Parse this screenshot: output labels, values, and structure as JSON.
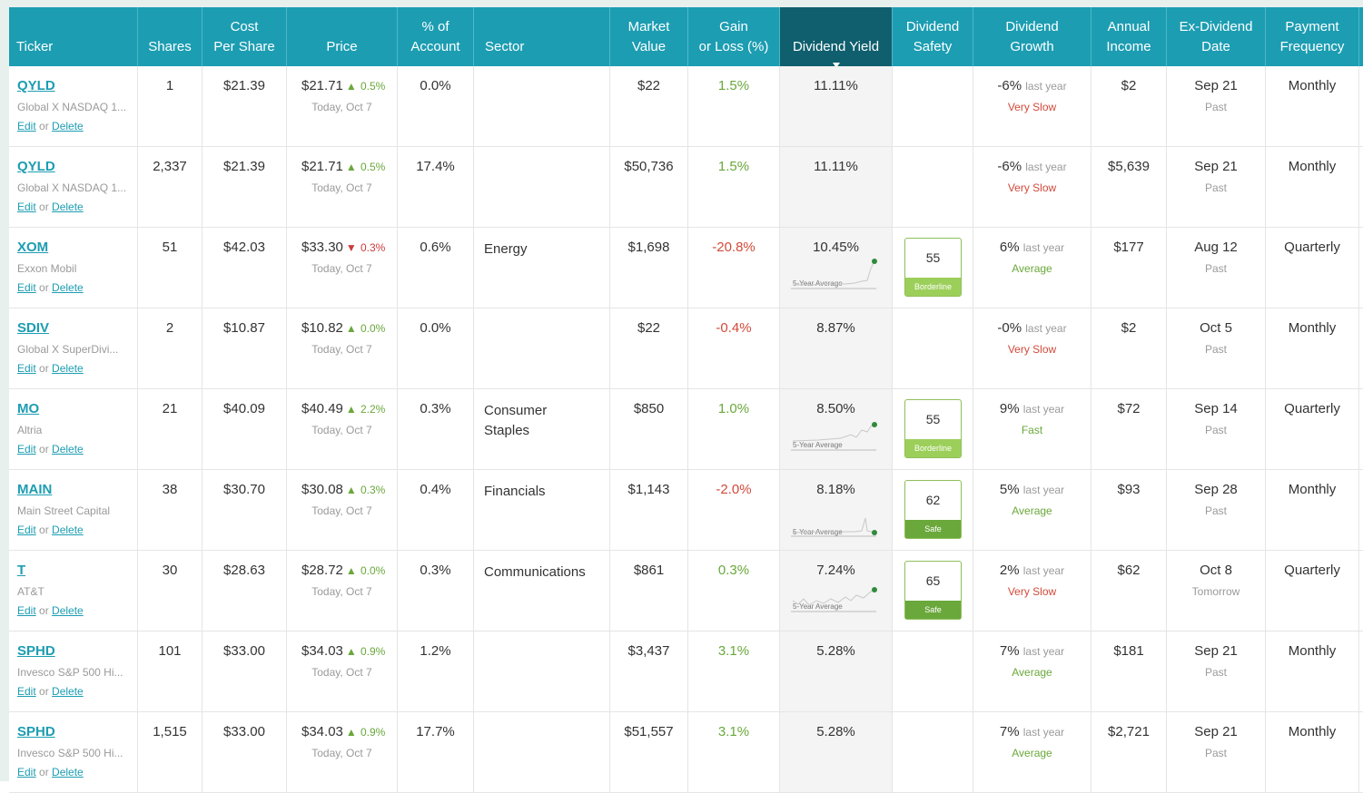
{
  "headers": {
    "ticker": "Ticker",
    "shares": "Shares",
    "cost": [
      "Cost",
      "Per Share"
    ],
    "price": "Price",
    "pct": [
      "% of",
      "Account"
    ],
    "sector": "Sector",
    "mv": [
      "Market",
      "Value"
    ],
    "gain": [
      "Gain",
      "or Loss (%)"
    ],
    "yield": "Dividend Yield",
    "safety": [
      "Dividend",
      "Safety"
    ],
    "growth": [
      "Dividend",
      "Growth"
    ],
    "income": [
      "Annual",
      "Income"
    ],
    "exdiv": [
      "Ex-Dividend",
      "Date"
    ],
    "freq": [
      "Payment",
      "Frequency"
    ]
  },
  "labels": {
    "edit": "Edit",
    "or": "or",
    "delete": "Delete",
    "last_year": "last year",
    "five_year_avg": "5-Year Average"
  },
  "rows": [
    {
      "ticker": "QYLD",
      "name": "Global X NASDAQ 1...",
      "shares": "1",
      "cost": "$21.39",
      "price": "$21.71",
      "change": "0.5%",
      "change_dir": "up",
      "price_date": "Today, Oct 7",
      "pct": "0.0%",
      "sector": "",
      "mv": "$22",
      "gain": "1.5%",
      "gain_sign": "pos",
      "yield": "11.11%",
      "safety_score": "",
      "safety_label": "",
      "growth": "-6%",
      "growth_label": "Very Slow",
      "growth_class": "vs",
      "income": "$2",
      "exdiv": "Sep 21",
      "exdiv_sub": "Past",
      "freq": "Monthly"
    },
    {
      "ticker": "QYLD",
      "name": "Global X NASDAQ 1...",
      "shares": "2,337",
      "cost": "$21.39",
      "price": "$21.71",
      "change": "0.5%",
      "change_dir": "up",
      "price_date": "Today, Oct 7",
      "pct": "17.4%",
      "sector": "",
      "mv": "$50,736",
      "gain": "1.5%",
      "gain_sign": "pos",
      "yield": "11.11%",
      "safety_score": "",
      "safety_label": "",
      "growth": "-6%",
      "growth_label": "Very Slow",
      "growth_class": "vs",
      "income": "$5,639",
      "exdiv": "Sep 21",
      "exdiv_sub": "Past",
      "freq": "Monthly"
    },
    {
      "ticker": "XOM",
      "name": "Exxon Mobil",
      "shares": "51",
      "cost": "$42.03",
      "price": "$33.30",
      "change": "0.3%",
      "change_dir": "dn",
      "price_date": "Today, Oct 7",
      "pct": "0.6%",
      "sector": "Energy",
      "mv": "$1,698",
      "gain": "-20.8%",
      "gain_sign": "neg",
      "yield": "10.45%",
      "safety_score": "55",
      "safety_label": "Borderline",
      "growth": "6%",
      "growth_label": "Average",
      "growth_class": "av",
      "income": "$177",
      "exdiv": "Aug 12",
      "exdiv_sub": "Past",
      "freq": "Quarterly"
    },
    {
      "ticker": "SDIV",
      "name": "Global X SuperDivi...",
      "shares": "2",
      "cost": "$10.87",
      "price": "$10.82",
      "change": "0.0%",
      "change_dir": "up",
      "price_date": "Today, Oct 7",
      "pct": "0.0%",
      "sector": "",
      "mv": "$22",
      "gain": "-0.4%",
      "gain_sign": "neg",
      "yield": "8.87%",
      "safety_score": "",
      "safety_label": "",
      "growth": "-0%",
      "growth_label": "Very Slow",
      "growth_class": "vs",
      "income": "$2",
      "exdiv": "Oct 5",
      "exdiv_sub": "Past",
      "freq": "Monthly"
    },
    {
      "ticker": "MO",
      "name": "Altria",
      "shares": "21",
      "cost": "$40.09",
      "price": "$40.49",
      "change": "2.2%",
      "change_dir": "up",
      "price_date": "Today, Oct 7",
      "pct": "0.3%",
      "sector": "Consumer Staples",
      "mv": "$850",
      "gain": "1.0%",
      "gain_sign": "pos",
      "yield": "8.50%",
      "safety_score": "55",
      "safety_label": "Borderline",
      "growth": "9%",
      "growth_label": "Fast",
      "growth_class": "fa",
      "income": "$72",
      "exdiv": "Sep 14",
      "exdiv_sub": "Past",
      "freq": "Quarterly"
    },
    {
      "ticker": "MAIN",
      "name": "Main Street Capital",
      "shares": "38",
      "cost": "$30.70",
      "price": "$30.08",
      "change": "0.3%",
      "change_dir": "up",
      "price_date": "Today, Oct 7",
      "pct": "0.4%",
      "sector": "Financials",
      "mv": "$1,143",
      "gain": "-2.0%",
      "gain_sign": "neg",
      "yield": "8.18%",
      "safety_score": "62",
      "safety_label": "Safe",
      "growth": "5%",
      "growth_label": "Average",
      "growth_class": "av",
      "income": "$93",
      "exdiv": "Sep 28",
      "exdiv_sub": "Past",
      "freq": "Monthly"
    },
    {
      "ticker": "T",
      "name": "AT&T",
      "shares": "30",
      "cost": "$28.63",
      "price": "$28.72",
      "change": "0.0%",
      "change_dir": "up",
      "price_date": "Today, Oct 7",
      "pct": "0.3%",
      "sector": "Communications",
      "mv": "$861",
      "gain": "0.3%",
      "gain_sign": "pos",
      "yield": "7.24%",
      "safety_score": "65",
      "safety_label": "Safe",
      "growth": "2%",
      "growth_label": "Very Slow",
      "growth_class": "vs",
      "income": "$62",
      "exdiv": "Oct 8",
      "exdiv_sub": "Tomorrow",
      "freq": "Quarterly"
    },
    {
      "ticker": "SPHD",
      "name": "Invesco S&P 500 Hi...",
      "shares": "101",
      "cost": "$33.00",
      "price": "$34.03",
      "change": "0.9%",
      "change_dir": "up",
      "price_date": "Today, Oct 7",
      "pct": "1.2%",
      "sector": "",
      "mv": "$3,437",
      "gain": "3.1%",
      "gain_sign": "pos",
      "yield": "5.28%",
      "safety_score": "",
      "safety_label": "",
      "growth": "7%",
      "growth_label": "Average",
      "growth_class": "av",
      "income": "$181",
      "exdiv": "Sep 21",
      "exdiv_sub": "Past",
      "freq": "Monthly"
    },
    {
      "ticker": "SPHD",
      "name": "Invesco S&P 500 Hi...",
      "shares": "1,515",
      "cost": "$33.00",
      "price": "$34.03",
      "change": "0.9%",
      "change_dir": "up",
      "price_date": "Today, Oct 7",
      "pct": "17.7%",
      "sector": "",
      "mv": "$51,557",
      "gain": "3.1%",
      "gain_sign": "pos",
      "yield": "5.28%",
      "safety_score": "",
      "safety_label": "",
      "growth": "7%",
      "growth_label": "Average",
      "growth_class": "av",
      "income": "$2,721",
      "exdiv": "Sep 21",
      "exdiv_sub": "Past",
      "freq": "Monthly"
    }
  ]
}
